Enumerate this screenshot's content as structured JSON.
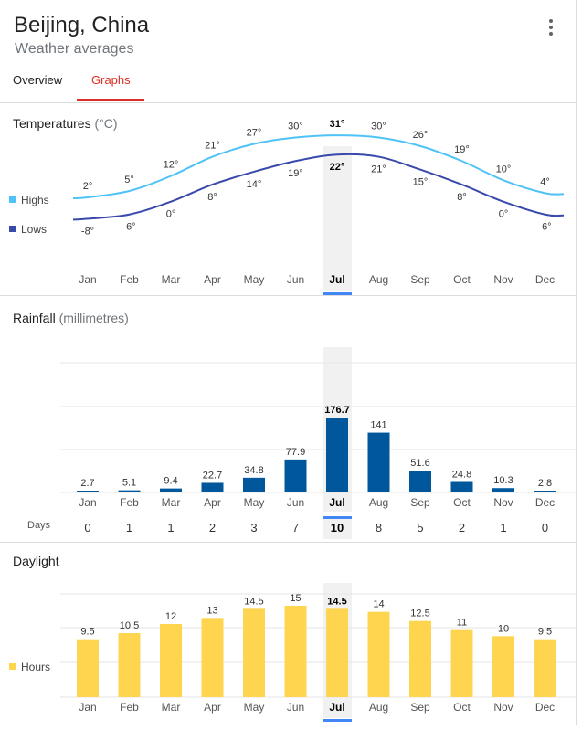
{
  "header": {
    "title": "Beijing, China",
    "subtitle": "Weather averages",
    "menu_icon": "more-vert-icon"
  },
  "tabs": [
    {
      "label": "Overview",
      "selected": false
    },
    {
      "label": "Graphs",
      "selected": true
    }
  ],
  "months": [
    "Jan",
    "Feb",
    "Mar",
    "Apr",
    "May",
    "Jun",
    "Jul",
    "Aug",
    "Sep",
    "Oct",
    "Nov",
    "Dec"
  ],
  "selected_month_index": 6,
  "colors": {
    "highs": "#4fc3f7",
    "lows": "#3949ab",
    "rainfall": "#01579b",
    "daylight": "#ffd54f",
    "selected_band": "#f1f1f1",
    "selected_marker": "#4285f4",
    "tab_active": "#d93025"
  },
  "temperatures": {
    "title": "Temperatures",
    "unit": "(°C)",
    "legend_highs": "Highs",
    "legend_lows": "Lows"
  },
  "rainfall": {
    "title": "Rainfall",
    "unit": "(millimetres)",
    "days_label": "Days"
  },
  "daylight": {
    "title": "Daylight",
    "legend_hours": "Hours"
  },
  "chart_data": [
    {
      "type": "line",
      "title": "Temperatures (°C)",
      "x": [
        "Jan",
        "Feb",
        "Mar",
        "Apr",
        "May",
        "Jun",
        "Jul",
        "Aug",
        "Sep",
        "Oct",
        "Nov",
        "Dec"
      ],
      "series": [
        {
          "name": "Highs",
          "values": [
            2,
            5,
            12,
            21,
            27,
            30,
            31,
            30,
            26,
            19,
            10,
            4
          ],
          "labels": [
            "2°",
            "5°",
            "12°",
            "21°",
            "27°",
            "30°",
            "31°",
            "30°",
            "26°",
            "19°",
            "10°",
            "4°"
          ]
        },
        {
          "name": "Lows",
          "values": [
            -8,
            -6,
            0,
            8,
            14,
            19,
            22,
            21,
            15,
            8,
            0,
            -6
          ],
          "labels": [
            "-8°",
            "-6°",
            "0°",
            "8°",
            "14°",
            "19°",
            "22°",
            "21°",
            "15°",
            "8°",
            "0°",
            "-6°"
          ]
        }
      ]
    },
    {
      "type": "bar",
      "title": "Rainfall (millimetres)",
      "categories": [
        "Jan",
        "Feb",
        "Mar",
        "Apr",
        "May",
        "Jun",
        "Jul",
        "Aug",
        "Sep",
        "Oct",
        "Nov",
        "Dec"
      ],
      "values": [
        2.7,
        5.1,
        9.4,
        22.7,
        34.8,
        77.9,
        176.7,
        141,
        51.6,
        24.8,
        10.3,
        2.8
      ],
      "labels": [
        "2.7",
        "5.1",
        "9.4",
        "22.7",
        "34.8",
        "77.9",
        "176.7",
        "141",
        "51.6",
        "24.8",
        "10.3",
        "2.8"
      ],
      "days": [
        "0",
        "1",
        "1",
        "2",
        "3",
        "7",
        "10",
        "8",
        "5",
        "2",
        "1",
        "0"
      ]
    },
    {
      "type": "bar",
      "title": "Daylight",
      "categories": [
        "Jan",
        "Feb",
        "Mar",
        "Apr",
        "May",
        "Jun",
        "Jul",
        "Aug",
        "Sep",
        "Oct",
        "Nov",
        "Dec"
      ],
      "series": [
        {
          "name": "Hours",
          "values": [
            9.5,
            10.5,
            12,
            13,
            14.5,
            15,
            14.5,
            14,
            12.5,
            11,
            10,
            9.5
          ]
        }
      ],
      "labels": [
        "9.5",
        "10.5",
        "12",
        "13",
        "14.5",
        "15",
        "14.5",
        "14",
        "12.5",
        "11",
        "10",
        "9.5"
      ]
    }
  ]
}
